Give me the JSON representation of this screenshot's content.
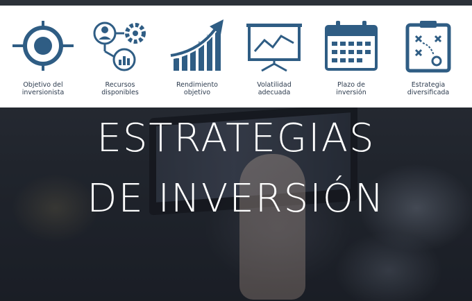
{
  "banner": {
    "items": [
      {
        "label_line1": "Objetivo del",
        "label_line2": "inversionista",
        "icon": "target-icon"
      },
      {
        "label_line1": "Recursos",
        "label_line2": "disponibles",
        "icon": "resources-icon"
      },
      {
        "label_line1": "Rendimiento",
        "label_line2": "objetivo",
        "icon": "growth-chart-icon"
      },
      {
        "label_line1": "Volatilidad",
        "label_line2": "adecuada",
        "icon": "presentation-chart-icon"
      },
      {
        "label_line1": "Plazo de",
        "label_line2": "inversión",
        "icon": "calendar-icon"
      },
      {
        "label_line1": "Estrategia",
        "label_line2": "diversificada",
        "icon": "strategy-clipboard-icon"
      }
    ],
    "icon_color": "#2f5d84"
  },
  "headline": {
    "line1": "ESTRATEGIAS",
    "line2": "DE INVERSIÓN"
  }
}
